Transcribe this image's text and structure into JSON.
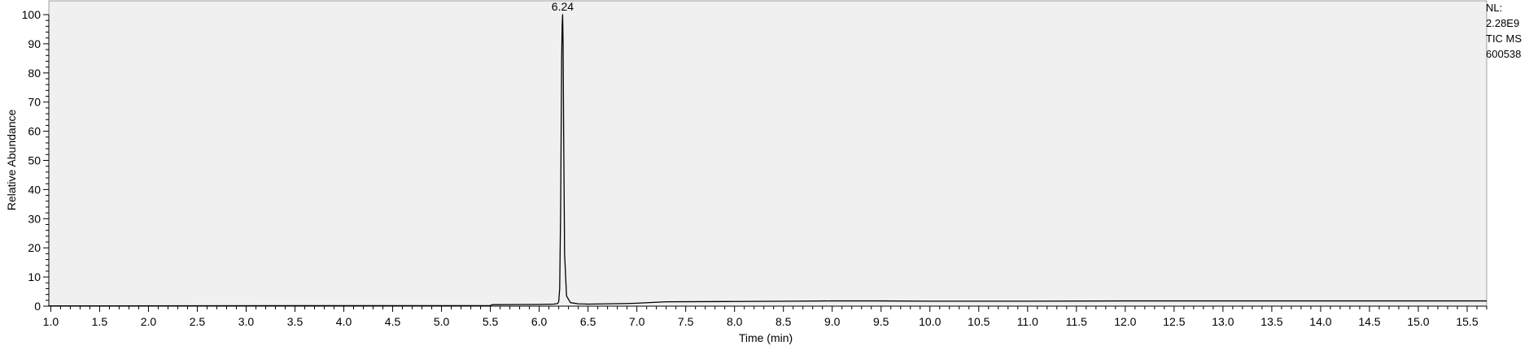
{
  "chart_data": {
    "type": "line",
    "title": "",
    "xlabel": "Time (min)",
    "ylabel": "Relative Abundance",
    "xlim": [
      0.98,
      15.7
    ],
    "ylim": [
      0,
      100
    ],
    "x_ticks": [
      "1.0",
      "1.5",
      "2.0",
      "2.5",
      "3.0",
      "3.5",
      "4.0",
      "4.5",
      "5.0",
      "5.5",
      "6.0",
      "6.5",
      "7.0",
      "7.5",
      "8.0",
      "8.5",
      "9.0",
      "9.5",
      "10.0",
      "10.5",
      "11.0",
      "11.5",
      "12.0",
      "12.5",
      "13.0",
      "13.5",
      "14.0",
      "14.5",
      "15.0",
      "15.5"
    ],
    "y_ticks": [
      "0",
      "10",
      "20",
      "30",
      "40",
      "50",
      "60",
      "70",
      "80",
      "90",
      "100"
    ],
    "grid": false,
    "background": "#f0f0f0",
    "line_color": "#000000",
    "series": [
      {
        "x": [
          0.98,
          5.5,
          5.52,
          6.0,
          6.15,
          6.19,
          6.2,
          6.21,
          6.22,
          6.225,
          6.23,
          6.235,
          6.24,
          6.245,
          6.25,
          6.26,
          6.28,
          6.32,
          6.4,
          6.5,
          6.7,
          6.9,
          7.0,
          7.3,
          8.0,
          8.6,
          9.0,
          9.5,
          10.0,
          11.0,
          12.0,
          13.0,
          14.0,
          15.0,
          15.7
        ],
        "y": [
          0.1,
          0.2,
          0.5,
          0.6,
          0.7,
          0.9,
          1.6,
          6.0,
          34.0,
          60.0,
          85.0,
          96.0,
          100.0,
          90.0,
          62.0,
          18.0,
          3.5,
          1.2,
          0.8,
          0.7,
          0.8,
          0.9,
          1.0,
          1.5,
          1.6,
          1.7,
          1.8,
          1.8,
          1.7,
          1.7,
          1.8,
          1.8,
          1.8,
          1.8,
          1.8
        ]
      }
    ],
    "annotations": [
      {
        "x": 6.24,
        "y": 100,
        "text": "6.24"
      }
    ]
  },
  "nl_info": {
    "line1": "NL:",
    "line2": "2.28E9",
    "line3": "TIC  MS",
    "line4": "600538"
  }
}
